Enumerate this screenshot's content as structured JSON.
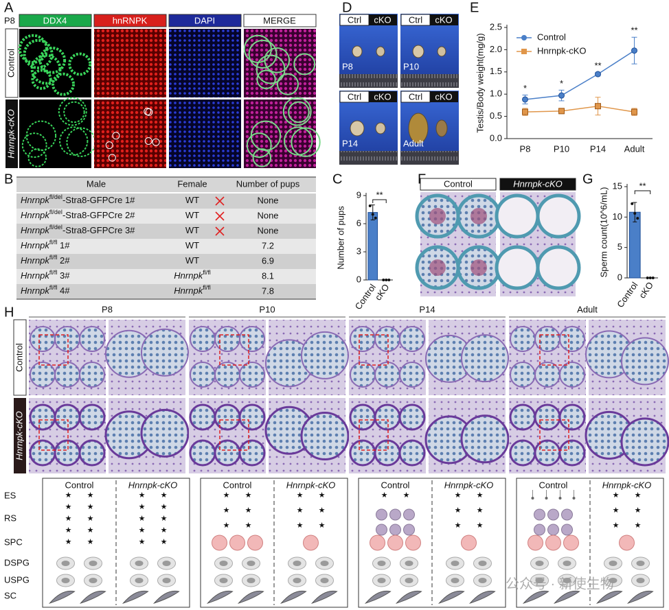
{
  "panels": {
    "letters": [
      "A",
      "B",
      "C",
      "D",
      "E",
      "F",
      "G",
      "H"
    ],
    "a": {
      "stage": "P8",
      "channels": [
        "DDX4",
        "hnRNPK",
        "DAPI",
        "MERGE"
      ],
      "rows": [
        "Control",
        "Hnrnpk-cKO"
      ]
    },
    "b": {
      "headers": [
        "Male",
        "Female",
        "Number of pups"
      ],
      "rows": [
        {
          "male": [
            "Hnrnpk",
            "fl/del",
            "-Stra8-GFPCre 1#"
          ],
          "female": [
            "WT"
          ],
          "pups": "None",
          "crossed": true
        },
        {
          "male": [
            "Hnrnpk",
            "fl/del",
            "-Stra8-GFPCre 2#"
          ],
          "female": [
            "WT"
          ],
          "pups": "None",
          "crossed": true
        },
        {
          "male": [
            "Hnrnpk",
            "fl/del",
            "-Stra8-GFPCre 3#"
          ],
          "female": [
            "WT"
          ],
          "pups": "None",
          "crossed": true
        },
        {
          "male": [
            "Hnrnpk",
            "fl/fl",
            " 1#"
          ],
          "female": [
            "WT"
          ],
          "pups": 7.2
        },
        {
          "male": [
            "Hnrnpk",
            "fl/fl",
            " 2#"
          ],
          "female": [
            "WT"
          ],
          "pups": 6.9
        },
        {
          "male": [
            "Hnrnpk",
            "fl/fl",
            " 3#"
          ],
          "female": [
            "Hnrnpk",
            "fl/fl"
          ],
          "pups": 8.1
        },
        {
          "male": [
            "Hnrnpk",
            "fl/fl",
            " 4#"
          ],
          "female": [
            "Hnrnpk",
            "fl/fl"
          ],
          "pups": 7.8
        }
      ]
    },
    "d": {
      "groups": [
        "Ctrl",
        "cKO"
      ],
      "stages": [
        "P8",
        "P10",
        "P14",
        "Adult"
      ]
    },
    "f": {
      "columns": [
        "Control",
        "Hnrnpk-cKO"
      ]
    },
    "h": {
      "stages": [
        "P8",
        "P10",
        "P14",
        "Adult"
      ],
      "rows": [
        "Control",
        "Hnrnpk-cKO"
      ],
      "cell_types": [
        "ES",
        "RS",
        "SPC",
        "DSPG",
        "USPG",
        "SC"
      ],
      "groups": [
        "Control",
        "Hnrnpk-cKO"
      ]
    },
    "watermark": "公众号 · 新使生物"
  },
  "chart_data": [
    {
      "type": "line",
      "ylabel": "Testis/Body weight(mg/g)",
      "categories": [
        "P8",
        "P10",
        "P14",
        "Adult"
      ],
      "series": [
        {
          "name": "Control",
          "color": "#4a7fc8",
          "values": [
            0.88,
            0.97,
            1.45,
            1.98
          ],
          "errors": [
            0.1,
            0.12,
            0.04,
            0.3
          ]
        },
        {
          "name": "Hnrnpk-cKO",
          "color": "#e0964a",
          "values": [
            0.6,
            0.62,
            0.73,
            0.6
          ],
          "errors": [
            0.08,
            0.06,
            0.2,
            0.08
          ]
        }
      ],
      "annotations": [
        "*",
        "*",
        "**",
        "**"
      ],
      "ylim": [
        0,
        2.5
      ],
      "yticks": [
        {
          "value": 0,
          "label": "0.0"
        },
        0.5,
        {
          "value": 1,
          "label": "1.0"
        },
        1.5,
        {
          "value": 2,
          "label": "2.0"
        },
        2.5
      ],
      "legend": "upper left"
    },
    {
      "type": "bar",
      "ylabel": "Number of pups",
      "categories": [
        "Control",
        "cKO"
      ],
      "values": [
        7.2,
        0
      ],
      "errors": [
        0.8,
        0
      ],
      "points": [
        [
          7.9,
          7.0,
          6.6
        ],
        [
          0,
          0,
          0
        ]
      ],
      "color": "#4a7fc8",
      "annotation": "**",
      "ylim": [
        0,
        9
      ],
      "yticks": [
        0,
        3,
        6,
        9
      ]
    },
    {
      "type": "bar",
      "ylabel": "Sperm count(10^6/mL)",
      "categories": [
        "Control",
        "cKO"
      ],
      "values": [
        10.8,
        0
      ],
      "errors": [
        1.6,
        0
      ],
      "points": [
        [
          12.2,
          10.6,
          9.8
        ],
        [
          0,
          0,
          0
        ]
      ],
      "color": "#4a7fc8",
      "annotation": "**",
      "ylim": [
        0,
        15
      ],
      "yticks": [
        0,
        5,
        10,
        15
      ]
    }
  ]
}
